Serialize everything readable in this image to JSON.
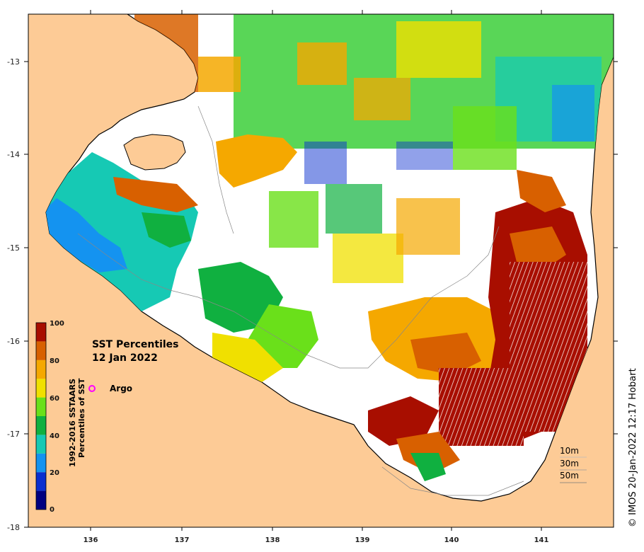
{
  "map": {
    "title": "SST Percentiles",
    "date": "12 Jan 2022",
    "credit": "© IMOS 20-Jan-2022 12:17 Hobart",
    "land_color": "#fdcb96",
    "no_data_color": "#ffffff",
    "x_ticks": [
      "136",
      "137",
      "138",
      "139",
      "140",
      "141"
    ],
    "y_ticks": [
      "-13",
      "-14",
      "-15",
      "-16",
      "-17",
      "-18"
    ],
    "argo": {
      "marker_color": "#ff00ff",
      "label": "Argo"
    },
    "depth_contours": [
      "10m",
      "30m",
      "50m"
    ]
  },
  "colorbar": {
    "title_line1": "1992-2016 SSTAARS",
    "title_line2": "Percentiles of SST",
    "labels": [
      "0",
      "20",
      "40",
      "60",
      "80",
      "100"
    ],
    "colors": [
      "#000080",
      "#0a2fd0",
      "#1493f0",
      "#16c9b4",
      "#10b040",
      "#6ae01a",
      "#f0e000",
      "#f5a800",
      "#d86000",
      "#a80e00"
    ]
  }
}
